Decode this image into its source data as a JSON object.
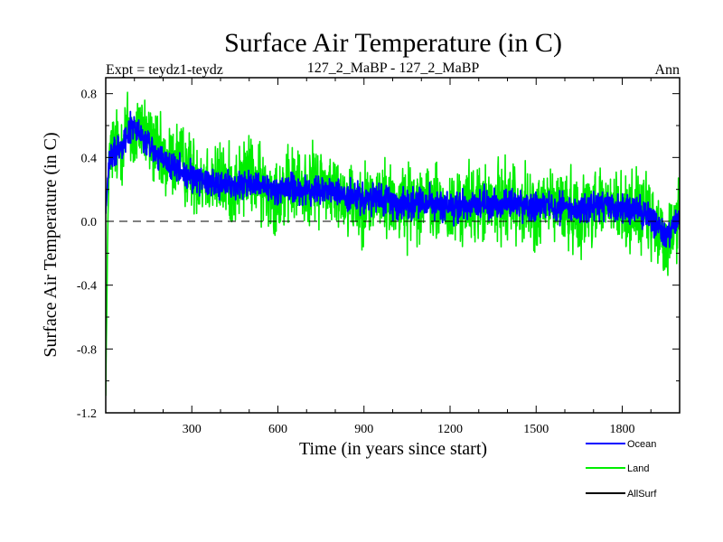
{
  "chart_data": {
    "type": "line",
    "title": "Surface Air Temperature (in C)",
    "subtitle_left": "Expt = teydz1-teydz",
    "subtitle_center": "127_2_MaBP - 127_2_MaBP",
    "subtitle_right": "Ann",
    "xlabel": "Time (in years since start)",
    "ylabel": "Surface Air Temperature (in C)",
    "xlim": [
      0,
      2000
    ],
    "ylim": [
      -1.2,
      0.9
    ],
    "xticks": [
      300,
      600,
      900,
      1200,
      1500,
      1800
    ],
    "xtick_labels": [
      "300",
      "600",
      "900",
      "1200",
      "1500",
      "1800"
    ],
    "yticks": [
      0.8,
      0.4,
      0.0,
      -0.4,
      -0.8,
      -1.2
    ],
    "ytick_labels": [
      "0.8",
      "0.4",
      "0.0",
      "-0.4",
      "-0.8",
      "-1.2"
    ],
    "zero_line": 0.0,
    "series": [
      {
        "name": "Land",
        "color": "#00ee00",
        "x": [
          0,
          10,
          25,
          50,
          75,
          100,
          125,
          150,
          175,
          200,
          250,
          300,
          350,
          400,
          450,
          500,
          550,
          600,
          650,
          700,
          750,
          800,
          850,
          900,
          950,
          1000,
          1050,
          1100,
          1150,
          1200,
          1250,
          1300,
          1350,
          1400,
          1450,
          1500,
          1550,
          1600,
          1650,
          1700,
          1750,
          1800,
          1850,
          1900,
          1950,
          2000
        ],
        "values": [
          -1.05,
          0.35,
          0.48,
          0.45,
          0.6,
          0.5,
          0.62,
          0.5,
          0.45,
          0.35,
          0.4,
          0.3,
          0.28,
          0.25,
          0.22,
          0.3,
          0.2,
          0.18,
          0.22,
          0.2,
          0.25,
          0.18,
          0.15,
          0.12,
          0.15,
          0.12,
          0.1,
          0.15,
          0.1,
          0.05,
          0.1,
          0.12,
          0.08,
          0.15,
          0.1,
          0.05,
          0.12,
          0.08,
          0.05,
          0.12,
          0.1,
          0.05,
          0.08,
          0.0,
          -0.15,
          0.05
        ]
      },
      {
        "name": "Ocean",
        "color": "#0000ff",
        "x": [
          0,
          10,
          25,
          50,
          75,
          100,
          125,
          150,
          175,
          200,
          250,
          300,
          350,
          400,
          450,
          500,
          550,
          600,
          650,
          700,
          750,
          800,
          850,
          900,
          950,
          1000,
          1050,
          1100,
          1150,
          1200,
          1250,
          1300,
          1350,
          1400,
          1450,
          1500,
          1550,
          1600,
          1650,
          1700,
          1750,
          1800,
          1850,
          1900,
          1950,
          2000
        ],
        "values": [
          0.05,
          0.35,
          0.42,
          0.48,
          0.55,
          0.6,
          0.52,
          0.48,
          0.42,
          0.38,
          0.32,
          0.28,
          0.26,
          0.24,
          0.22,
          0.24,
          0.2,
          0.2,
          0.22,
          0.18,
          0.2,
          0.18,
          0.15,
          0.13,
          0.14,
          0.12,
          0.11,
          0.13,
          0.1,
          0.08,
          0.1,
          0.11,
          0.09,
          0.12,
          0.1,
          0.08,
          0.11,
          0.09,
          0.07,
          0.1,
          0.09,
          0.06,
          0.07,
          0.03,
          -0.1,
          0.04
        ]
      },
      {
        "name": "AllSurf",
        "color": "#000000",
        "x": [],
        "values": []
      }
    ],
    "legend": [
      "Ocean",
      "Land",
      "AllSurf"
    ],
    "legend_placement": "bottom-right"
  }
}
